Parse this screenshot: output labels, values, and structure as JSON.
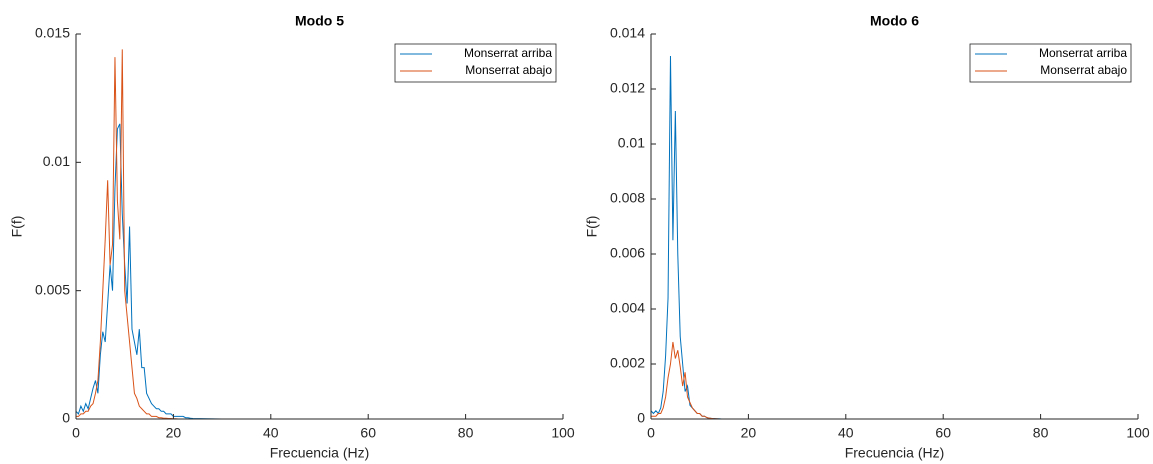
{
  "chart_data": [
    {
      "type": "line",
      "title": "Modo 5",
      "xlabel": "Frecuencia (Hz)",
      "ylabel": "F(f)",
      "x": [
        0,
        0.5,
        1,
        1.5,
        2,
        2.5,
        3,
        3.5,
        4,
        4.5,
        5,
        5.5,
        6,
        6.5,
        7,
        7.5,
        8,
        8.5,
        9,
        9.5,
        10,
        10.5,
        11,
        11.5,
        12,
        12.5,
        13,
        13.5,
        14,
        14.5,
        15,
        15.5,
        16,
        16.5,
        17,
        17.5,
        18,
        18.5,
        19,
        19.5,
        20,
        20.5,
        21,
        21.5,
        22,
        22.5,
        23,
        23.5,
        24,
        30,
        100
      ],
      "series": [
        {
          "name": "Monserrat arriba",
          "color": "#0072BD",
          "values": [
            0.0003,
            0.0002,
            0.0005,
            0.0003,
            0.0006,
            0.0004,
            0.0008,
            0.0012,
            0.0015,
            0.001,
            0.0025,
            0.0034,
            0.003,
            0.0045,
            0.006,
            0.005,
            0.009,
            0.0113,
            0.0115,
            0.008,
            0.006,
            0.0045,
            0.0075,
            0.0035,
            0.003,
            0.0025,
            0.0035,
            0.002,
            0.002,
            0.001,
            0.0008,
            0.0006,
            0.0005,
            0.0004,
            0.0004,
            0.0003,
            0.0003,
            0.0002,
            0.0002,
            0.0002,
            0.0001,
            0.0001,
            0.0001,
            0.0001,
            0.0001,
            5e-05,
            5e-05,
            3e-05,
            2e-05,
            0,
            0
          ]
        },
        {
          "name": "Monserrat abajo",
          "color": "#D95319",
          "values": [
            0.0001,
            0.0001,
            0.0002,
            0.0002,
            0.0003,
            0.0003,
            0.0005,
            0.0006,
            0.001,
            0.0015,
            0.003,
            0.005,
            0.007,
            0.0093,
            0.006,
            0.0068,
            0.0141,
            0.0085,
            0.007,
            0.0144,
            0.005,
            0.004,
            0.003,
            0.002,
            0.001,
            0.0008,
            0.0005,
            0.0004,
            0.0003,
            0.0002,
            0.0002,
            0.0001,
            0.0001,
            0.0001,
            5e-05,
            5e-05,
            3e-05,
            3e-05,
            2e-05,
            2e-05,
            1e-05,
            1e-05,
            0,
            0,
            0,
            0,
            0,
            0,
            0,
            0,
            0
          ]
        }
      ],
      "xlim": [
        0,
        100
      ],
      "xticks": [
        0,
        20,
        40,
        60,
        80,
        100
      ],
      "ylim": [
        0,
        0.015
      ],
      "yticks": [
        0,
        0.005,
        0.01,
        0.015
      ],
      "legend": "upper right",
      "grid": false
    },
    {
      "type": "line",
      "title": "Modo 6",
      "xlabel": "Frecuencia (Hz)",
      "ylabel": "F(f)",
      "x": [
        0,
        0.5,
        1,
        1.5,
        2,
        2.5,
        3,
        3.5,
        4,
        4.5,
        5,
        5.5,
        6,
        6.5,
        7,
        7.5,
        8,
        8.5,
        9,
        9.5,
        10,
        10.5,
        11,
        11.5,
        12,
        12.5,
        13,
        13.5,
        14,
        14.5,
        15,
        15.5,
        16,
        16.5,
        17,
        17.5,
        18,
        18.5,
        19,
        19.5,
        20,
        20.5,
        21,
        21.5,
        22,
        22.5,
        23,
        23.5,
        24,
        30,
        100
      ],
      "series": [
        {
          "name": "Monserrat arriba",
          "color": "#0072BD",
          "values": [
            0.0003,
            0.0002,
            0.0003,
            0.0002,
            0.0004,
            0.001,
            0.0023,
            0.0044,
            0.0132,
            0.0065,
            0.0112,
            0.006,
            0.003,
            0.002,
            0.001,
            0.0012,
            0.0005,
            0.0004,
            0.0003,
            0.0002,
            0.0002,
            0.0001,
            0.0001,
            5e-05,
            3e-05,
            2e-05,
            2e-05,
            1e-05,
            1e-05,
            0,
            0,
            0,
            0,
            0,
            0,
            0,
            0,
            0,
            0,
            0,
            0,
            0,
            0,
            0,
            0,
            0,
            0,
            0,
            0,
            0,
            0
          ]
        },
        {
          "name": "Monserrat abajo",
          "color": "#D95319",
          "values": [
            0.0001,
            0.0001,
            0.0001,
            0.0002,
            0.0002,
            0.0004,
            0.0008,
            0.0015,
            0.002,
            0.0028,
            0.0022,
            0.0025,
            0.0019,
            0.0012,
            0.0017,
            0.0008,
            0.0006,
            0.0004,
            0.0003,
            0.0002,
            0.0002,
            0.0001,
            0.0001,
            5e-05,
            3e-05,
            2e-05,
            1e-05,
            1e-05,
            0,
            0,
            0,
            0,
            0,
            0,
            0,
            0,
            0,
            0,
            0,
            0,
            0,
            0,
            0,
            0,
            0,
            0,
            0,
            0,
            0,
            0,
            0
          ]
        }
      ],
      "xlim": [
        0,
        100
      ],
      "xticks": [
        0,
        20,
        40,
        60,
        80,
        100
      ],
      "ylim": [
        0,
        0.014
      ],
      "yticks": [
        0,
        0.002,
        0.004,
        0.006,
        0.008,
        0.01,
        0.012,
        0.014
      ],
      "legend": "upper right",
      "grid": false
    }
  ]
}
